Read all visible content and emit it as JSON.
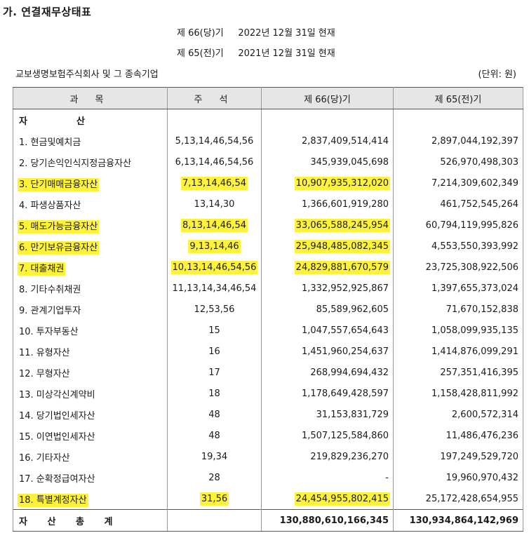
{
  "section_title": "가. 연결재무상태표",
  "period_current": "제 66(당)기     2022년 12월 31일 현재",
  "period_prior": "제 65(전)기     2021년 12월 31일 현재",
  "company": "교보생명보험주식회사 및 그 종속기업",
  "unit": "(단위: 원)",
  "headers": [
    "과 목",
    "주 석",
    "제 66(당)기",
    "제 65(전)기"
  ],
  "section_label_a": "자",
  "section_label_b": "산",
  "rows": [
    {
      "label": "1. 현금및예치금",
      "note": "5,13,14,46,54,56",
      "current": "2,837,409,514,414",
      "prior": "2,897,044,192,397",
      "highlight": false
    },
    {
      "label": "2. 당기손익인식지정금융자산",
      "note": "6,13,14,46,54,56",
      "current": "345,939,045,698",
      "prior": "526,970,498,303",
      "highlight": false
    },
    {
      "label": "3. 단기매매금융자산",
      "note": "7,13,14,46,54",
      "current": "10,907,935,312,020",
      "prior": "7,214,309,602,349",
      "highlight": true
    },
    {
      "label": "4. 파생상품자산",
      "note": "13,14,30",
      "current": "1,366,601,919,280",
      "prior": "461,752,545,264",
      "highlight": false
    },
    {
      "label": "5. 매도가능금융자산",
      "note": "8,13,14,46,54",
      "current": "33,065,588,245,954",
      "prior": "60,794,119,995,826",
      "highlight": true
    },
    {
      "label": "6. 만기보유금융자산",
      "note": "9,13,14,46",
      "current": "25,948,485,082,345",
      "prior": "4,553,550,393,992",
      "highlight": true
    },
    {
      "label": "7. 대출채권",
      "note": "10,13,14,46,54,56",
      "current": "24,829,881,670,579",
      "prior": "23,725,308,922,506",
      "highlight": true
    },
    {
      "label": "8. 기타수취채권",
      "note": "11,13,14,34,46,54",
      "current": "1,332,952,925,867",
      "prior": "1,397,655,373,024",
      "highlight": false
    },
    {
      "label": "9. 관계기업투자",
      "note": "12,53,56",
      "current": "85,589,962,605",
      "prior": "71,670,152,838",
      "highlight": false
    },
    {
      "label": "10. 투자부동산",
      "note": "15",
      "current": "1,047,557,654,643",
      "prior": "1,058,099,935,135",
      "highlight": false
    },
    {
      "label": "11. 유형자산",
      "note": "16",
      "current": "1,451,960,254,637",
      "prior": "1,414,876,099,291",
      "highlight": false
    },
    {
      "label": "12. 무형자산",
      "note": "17",
      "current": "268,994,694,432",
      "prior": "257,351,416,395",
      "highlight": false
    },
    {
      "label": "13. 미상각신계약비",
      "note": "18",
      "current": "1,178,649,428,597",
      "prior": "1,158,428,811,992",
      "highlight": false
    },
    {
      "label": "14. 당기법인세자산",
      "note": "48",
      "current": "31,153,831,729",
      "prior": "2,600,572,314",
      "highlight": false
    },
    {
      "label": "15. 이연법인세자산",
      "note": "48",
      "current": "1,507,125,584,860",
      "prior": "11,486,476,236",
      "highlight": false
    },
    {
      "label": "16. 기타자산",
      "note": "19,34",
      "current": "219,829,236,270",
      "prior": "197,249,529,720",
      "highlight": false
    },
    {
      "label": "17. 순확정급여자산",
      "note": "28",
      "current": "-",
      "prior": "19,960,970,432",
      "highlight": false
    },
    {
      "label": "18. 특별계정자산",
      "note": "31,56",
      "current": "24,454,955,802,415",
      "prior": "25,172,428,654,955",
      "highlight": true
    }
  ],
  "total": {
    "label": "자 산 총 계",
    "current": "130,880,610,166,345",
    "prior": "130,934,864,142,969"
  },
  "highlight_color": "#fff23a"
}
